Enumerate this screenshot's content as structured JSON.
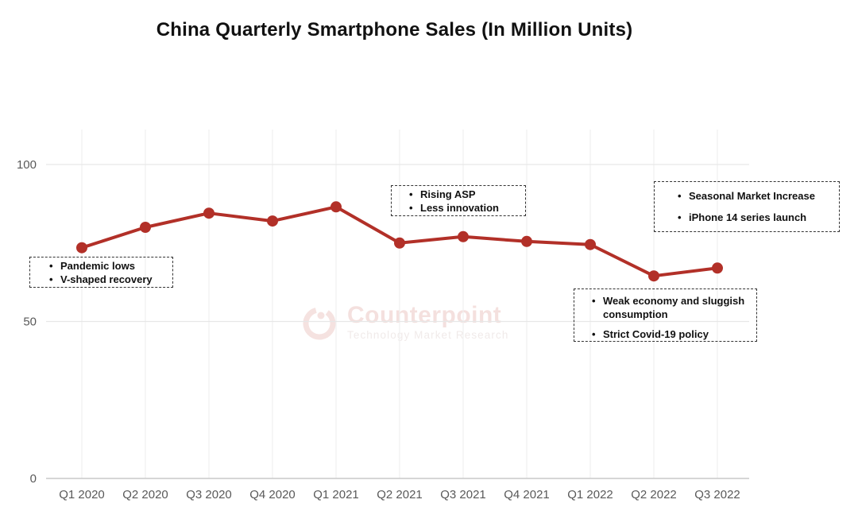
{
  "title": "China Quarterly Smartphone Sales (In Million Units)",
  "chart_data": {
    "type": "line",
    "title": "China Quarterly Smartphone Sales (In Million Units)",
    "categories": [
      "Q1 2020",
      "Q2 2020",
      "Q3 2020",
      "Q4 2020",
      "Q1 2021",
      "Q2 2021",
      "Q3 2021",
      "Q4 2021",
      "Q1 2022",
      "Q2 2022",
      "Q3 2022"
    ],
    "series": [
      {
        "name": "China quarterly smartphone sales (million units)",
        "values": [
          73.5,
          80,
          84.5,
          82,
          86.5,
          75,
          77,
          75.5,
          74.5,
          64.5,
          67
        ]
      }
    ],
    "xlabel": "",
    "ylabel": "",
    "y_ticks": [
      0,
      50,
      100
    ],
    "ylim": [
      0,
      111
    ],
    "grid": {
      "horizontal": true,
      "vertical": true
    },
    "legend": "none",
    "line_color": "#b23028",
    "marker": "circle",
    "gridline_color": "#e7e7e7",
    "axis_line_color": "#c9c9c9",
    "tick_label_color": "#595959"
  },
  "annotations": [
    {
      "id": "pandemic",
      "lines": [
        "Pandemic lows",
        "V-shaped recovery"
      ]
    },
    {
      "id": "rising-asp",
      "lines": [
        "Rising ASP",
        "Less innovation"
      ]
    },
    {
      "id": "seasonal",
      "lines": [
        "Seasonal Market Increase",
        "iPhone 14 series launch"
      ]
    },
    {
      "id": "weak-economy",
      "lines": [
        "Weak economy and sluggish consumption",
        "Strict Covid-19 policy"
      ]
    }
  ],
  "watermark": {
    "brand": "Counterpoint",
    "tagline": "Technology Market Research",
    "logo_icon": "counterpoint-ring-logo",
    "color": "#b23028"
  }
}
